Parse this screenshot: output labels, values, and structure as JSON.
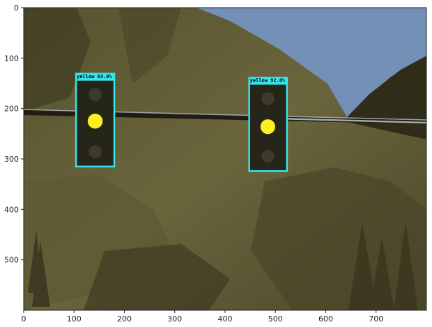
{
  "chart_data": {
    "type": "scatter",
    "title": "",
    "xlabel": "",
    "ylabel": "",
    "xlim": [
      0,
      800
    ],
    "ylim": [
      600,
      0
    ],
    "x_ticks": [
      0,
      100,
      200,
      300,
      400,
      500,
      600,
      700
    ],
    "y_ticks": [
      0,
      100,
      200,
      300,
      400,
      500
    ],
    "grid": false,
    "box_color": "#35e6ee",
    "light_color": "#ffee22",
    "detections": [
      {
        "label": "yellow  93.0%",
        "x0": 104,
        "y0": 143,
        "x1": 180,
        "y1": 315,
        "lit_cx": 142,
        "lit_cy": 225
      },
      {
        "label": "yellow  92.0%",
        "x0": 448,
        "y0": 151,
        "x1": 523,
        "y1": 324,
        "lit_cx": 485,
        "lit_cy": 236
      }
    ]
  }
}
